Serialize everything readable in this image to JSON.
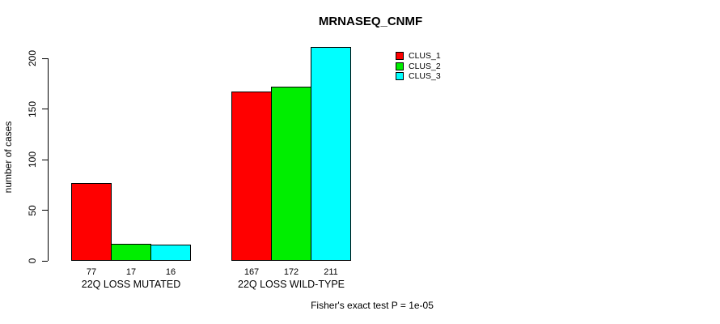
{
  "title": "MRNASEQ_CNMF",
  "ylabel": "number of cases",
  "footer": "Fisher's exact test P = 1e-05",
  "colors": {
    "clus1": "#FF0000",
    "clus2": "#00EE00",
    "clus3": "#00FFFF",
    "axis": "#000000",
    "background": "#FFFFFF"
  },
  "legend": {
    "items": [
      {
        "label": "CLUS_1",
        "color": "#FF0000"
      },
      {
        "label": "CLUS_2",
        "color": "#00EE00"
      },
      {
        "label": "CLUS_3",
        "color": "#00FFFF"
      }
    ]
  },
  "chart_data": {
    "type": "bar",
    "title": "MRNASEQ_CNMF",
    "xlabel": "",
    "ylabel": "number of cases",
    "categories": [
      "22Q LOSS MUTATED",
      "22Q LOSS WILD-TYPE"
    ],
    "series": [
      {
        "name": "CLUS_1",
        "color": "#FF0000",
        "values": [
          77,
          167
        ]
      },
      {
        "name": "CLUS_2",
        "color": "#00EE00",
        "values": [
          17,
          172
        ]
      },
      {
        "name": "CLUS_3",
        "color": "#00FFFF",
        "values": [
          16,
          211
        ]
      }
    ],
    "bar_value_labels": [
      [
        77,
        17,
        16
      ],
      [
        167,
        172,
        211
      ]
    ],
    "yticks": [
      0,
      50,
      100,
      150,
      200
    ],
    "ylim": [
      0,
      200
    ],
    "grid": false,
    "legend_position": "top-right",
    "annotation": "Fisher's exact test P = 1e-05"
  }
}
